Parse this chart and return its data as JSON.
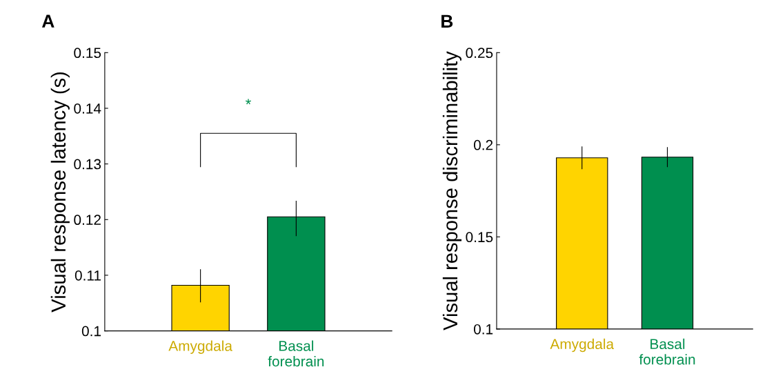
{
  "chart_data": [
    {
      "type": "bar",
      "title": "A",
      "ylabel": "Visual response latency (s)",
      "categories": [
        "Amygdala",
        "Basal\nforebrain"
      ],
      "values": [
        0.1082,
        0.1205
      ],
      "errors": [
        [
          0.1052,
          0.111
        ],
        [
          0.1171,
          0.1233
        ]
      ],
      "colors": [
        "#ffd400",
        "#008f4f"
      ],
      "ylim": [
        0.1,
        0.15
      ],
      "yticks": [
        0.1,
        0.11,
        0.12,
        0.13,
        0.14,
        0.15
      ],
      "grid": false,
      "annotations": [
        "*"
      ]
    },
    {
      "type": "bar",
      "title": "B",
      "ylabel": "Visual response discriminability",
      "categories": [
        "Amygdala",
        "Basal\nforebrain"
      ],
      "values": [
        0.1929,
        0.1933
      ],
      "errors": [
        [
          0.1869,
          0.1989
        ],
        [
          0.1881,
          0.1985
        ]
      ],
      "colors": [
        "#ffd400",
        "#008f4f"
      ],
      "ylim": [
        0.1,
        0.25
      ],
      "yticks": [
        0.1,
        0.15,
        0.2,
        0.25
      ],
      "grid": false
    }
  ]
}
